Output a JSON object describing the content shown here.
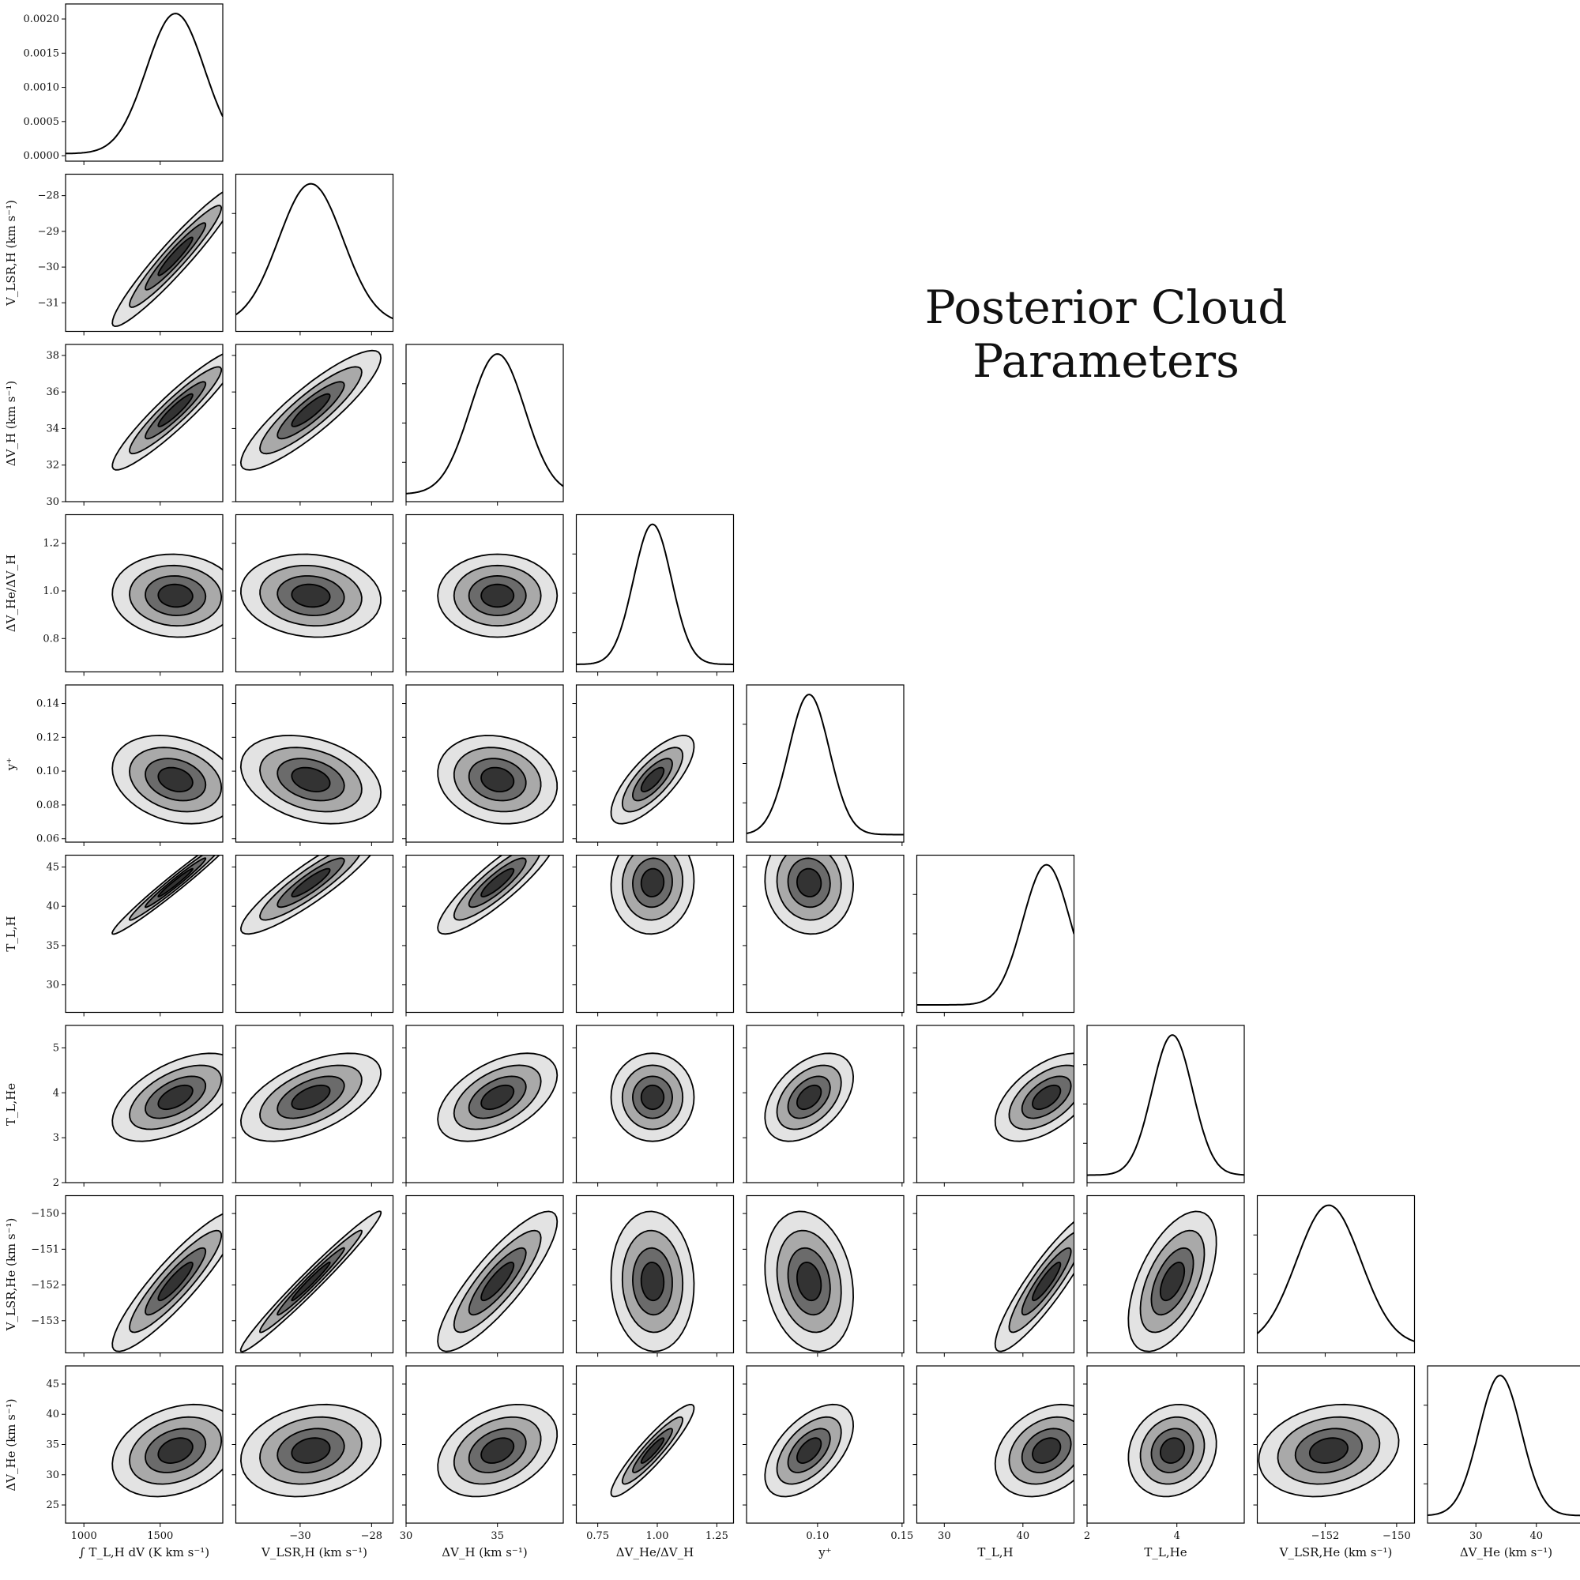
{
  "title": "Posterior Cloud Parameters",
  "chart_data": {
    "type": "corner",
    "title": "Posterior Cloud Parameters",
    "contour_fills": [
      "#e3e3e3",
      "#a9a9a9",
      "#6b6b6b",
      "#333333"
    ],
    "line_color": "#000000",
    "params": [
      {
        "key": "int_TL",
        "label": "∫ T_L,H dV (K km s⁻¹)",
        "ylabel": "",
        "range": [
          880,
          1910
        ],
        "ticks": [
          1000,
          1500
        ],
        "tick_labels": [
          "1000",
          "1500"
        ],
        "peak": 1600,
        "sigma": 190
      },
      {
        "key": "VLSR_H",
        "label": "V_LSR,H (km s⁻¹)",
        "ylabel": "V_LSR,H (km s⁻¹)",
        "range": [
          -31.8,
          -27.4
        ],
        "ticks": [
          -30,
          -28
        ],
        "tick_labels": [
          "−30",
          "−28"
        ],
        "yticks": [
          -28,
          -29,
          -30,
          -31
        ],
        "ytick_labels": [
          "−28",
          "−29",
          "−30",
          "−31"
        ],
        "peak": -29.7,
        "sigma": 0.9
      },
      {
        "key": "dV_H",
        "label": "ΔV_H (km s⁻¹)",
        "ylabel": "ΔV_H (km s⁻¹)",
        "range": [
          30,
          38.6
        ],
        "ticks": [
          30,
          35
        ],
        "tick_labels": [
          "30",
          "35"
        ],
        "yticks": [
          30,
          32,
          34,
          36,
          38
        ],
        "ytick_labels": [
          "30",
          "32",
          "34",
          "36",
          "38"
        ],
        "peak": 35.0,
        "sigma": 1.5
      },
      {
        "key": "dV_ratio",
        "label": "ΔV_He/ΔV_H",
        "ylabel": "ΔV_He/ΔV_H",
        "range": [
          0.66,
          1.32
        ],
        "ticks": [
          0.75,
          1.0,
          1.25
        ],
        "tick_labels": [
          "0.75",
          "1.00",
          "1.25"
        ],
        "yticks": [
          0.8,
          1.0,
          1.2
        ],
        "ytick_labels": [
          "0.8",
          "1.0",
          "1.2"
        ],
        "peak": 0.98,
        "sigma": 0.08
      },
      {
        "key": "y_plus",
        "label": "y⁺",
        "ylabel": "y⁺",
        "range": [
          0.058,
          0.151
        ],
        "ticks": [
          0.1,
          0.15
        ],
        "tick_labels": [
          "0.10",
          "0.15"
        ],
        "yticks": [
          0.06,
          0.08,
          0.1,
          0.12,
          0.14
        ],
        "ytick_labels": [
          "0.06",
          "0.08",
          "0.10",
          "0.12",
          "0.14"
        ],
        "peak": 0.095,
        "sigma": 0.012
      },
      {
        "key": "TL_H",
        "label": "T_L,H",
        "ylabel": "T_L,H",
        "range": [
          26.5,
          46.5
        ],
        "ticks": [
          30,
          40
        ],
        "tick_labels": [
          "30",
          "40"
        ],
        "yticks": [
          30,
          35,
          40,
          45
        ],
        "ytick_labels": [
          "30",
          "35",
          "40",
          "45"
        ],
        "peak": 43.0,
        "sigma": 3.0
      },
      {
        "key": "TL_He",
        "label": "T_L,He",
        "ylabel": "T_L,He",
        "range": [
          2.0,
          5.5
        ],
        "ticks": [
          2,
          4
        ],
        "tick_labels": [
          "2",
          "4"
        ],
        "yticks": [
          2,
          3,
          4,
          5
        ],
        "ytick_labels": [
          "2",
          "3",
          "4",
          "5"
        ],
        "peak": 3.9,
        "sigma": 0.45
      },
      {
        "key": "VLSR_He",
        "label": "V_LSR,He (km s⁻¹)",
        "ylabel": "V_LSR,He (km s⁻¹)",
        "range": [
          -153.9,
          -149.5
        ],
        "ticks": [
          -152,
          -150
        ],
        "tick_labels": [
          "−152",
          "−150"
        ],
        "yticks": [
          -150,
          -151,
          -152,
          -153
        ],
        "ytick_labels": [
          "−150",
          "−151",
          "−152",
          "−153"
        ],
        "peak": -151.9,
        "sigma": 0.9
      },
      {
        "key": "dV_He",
        "label": "ΔV_He (km s⁻¹)",
        "ylabel": "ΔV_He (km s⁻¹)",
        "range": [
          22,
          48
        ],
        "ticks": [
          30,
          40
        ],
        "tick_labels": [
          "30",
          "40"
        ],
        "yticks": [
          25,
          30,
          35,
          40,
          45
        ],
        "ytick_labels": [
          "25",
          "30",
          "35",
          "40",
          "45"
        ],
        "peak": 34,
        "sigma": 3.5
      }
    ],
    "marginal_yaxis": {
      "ticks": [
        0.0,
        0.0005,
        0.001,
        0.0015,
        0.002
      ],
      "tick_labels": [
        "0.0000",
        "0.0005",
        "0.0010",
        "0.0015",
        "0.0020"
      ],
      "range": [
        -8e-05,
        0.00222
      ]
    },
    "correlations": [
      [
        1.0
      ],
      [
        0.95,
        1.0
      ],
      [
        0.93,
        0.88,
        1.0
      ],
      [
        -0.05,
        -0.1,
        0.0,
        1.0
      ],
      [
        -0.25,
        -0.3,
        -0.15,
        0.75,
        1.0
      ],
      [
        0.99,
        0.9,
        0.88,
        0.05,
        -0.05,
        1.0
      ],
      [
        0.55,
        0.55,
        0.5,
        0.0,
        0.45,
        0.55,
        1.0
      ],
      [
        0.9,
        0.99,
        0.85,
        -0.05,
        -0.2,
        0.9,
        0.55,
        1.0
      ],
      [
        0.3,
        0.2,
        0.35,
        0.92,
        0.55,
        0.3,
        0.15,
        0.2,
        1.0
      ]
    ],
    "contour_levels_sigma": [
      2.2,
      1.6,
      1.05,
      0.6
    ]
  }
}
